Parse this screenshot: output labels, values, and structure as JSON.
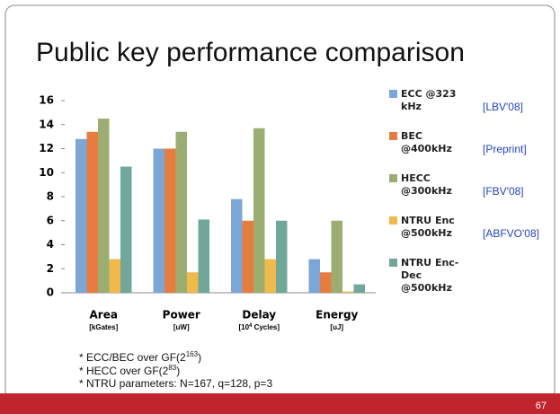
{
  "title": "Public key performance comparison",
  "chart_data": {
    "type": "bar",
    "categories": [
      "Area",
      "Power",
      "Delay",
      "Energy"
    ],
    "category_units": [
      "[kGates]",
      "[uW]",
      {
        "base": "[10",
        "sup": "4",
        "rest": " Cycles]"
      },
      "[uJ]"
    ],
    "series": [
      {
        "name": "ECC @323 kHz",
        "color": "#7ba7d8",
        "values": [
          12.8,
          12,
          7.8,
          2.8
        ]
      },
      {
        "name": "BEC @400kHz",
        "color": "#e87c3e",
        "values": [
          13.4,
          12,
          6,
          1.7
        ]
      },
      {
        "name": "HECC @300kHz",
        "color": "#9bae72",
        "values": [
          14.5,
          13.4,
          13.7,
          6
        ]
      },
      {
        "name": "NTRU Enc @500kHz",
        "color": "#f0b94a",
        "values": [
          2.8,
          1.7,
          2.8,
          0.1
        ]
      },
      {
        "name": "NTRU Enc-Dec @500kHz",
        "color": "#6fa79a",
        "values": [
          10.5,
          6.1,
          6,
          0.7
        ]
      }
    ],
    "ylim": [
      0,
      16
    ],
    "yticks": [
      0,
      2,
      4,
      6,
      8,
      10,
      12,
      14,
      16
    ],
    "grid": false
  },
  "references": [
    "[LBV'08]",
    "[Preprint]",
    "[FBV'08]",
    "[ABFVO'08]"
  ],
  "footnotes": [
    {
      "text": "* ECC/BEC over GF(2",
      "sup": "163",
      "rest": ")"
    },
    {
      "text": "* HECC over GF(2",
      "sup": "83",
      "rest": ")"
    },
    {
      "text": "* NTRU parameters:  N=167, q=128, p=3"
    }
  ],
  "page_number": "67"
}
